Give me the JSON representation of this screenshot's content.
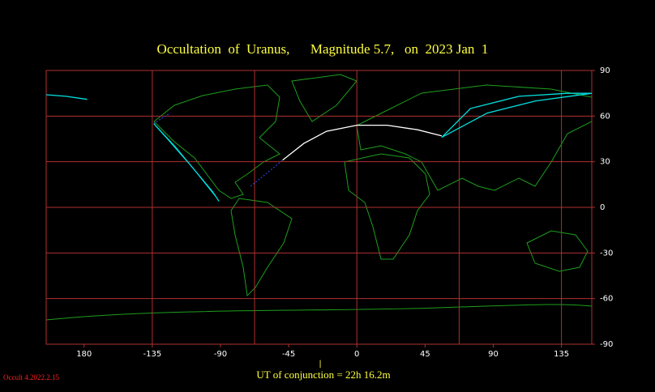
{
  "chart_data": {
    "type": "map",
    "title": "Occultation  of  Uranus,      Magnitude 5.7,   on  2023 Jan  1",
    "xlim": [
      -205,
      155
    ],
    "ylim": [
      -90,
      90
    ],
    "xticks": [
      {
        "value": -180,
        "label": "180"
      },
      -135,
      -90,
      -45,
      0,
      45,
      90,
      135
    ],
    "yticks": [
      90,
      60,
      30,
      0,
      -30,
      -60,
      -90
    ],
    "xgrid": [
      -135,
      -67.5,
      0,
      67.5,
      135
    ],
    "grid_color": "#b03030",
    "paths": [
      {
        "color": "#ffffff",
        "style": "solid",
        "x": [
          -49,
          -35,
          -20,
          0,
          20,
          40,
          56
        ],
        "y": [
          31,
          42,
          50,
          54,
          54,
          51,
          47
        ]
      },
      {
        "color": "#3050ff",
        "style": "dotted",
        "x": [
          -70,
          -60,
          -49
        ],
        "y": [
          14,
          22,
          31
        ]
      },
      {
        "color": "#3050ff",
        "style": "dotted",
        "x": [
          -134,
          -128,
          -123
        ],
        "y": [
          55,
          59,
          62
        ]
      },
      {
        "color": "#00e0e0",
        "style": "solid",
        "x": [
          -134,
          -120,
          -105,
          -93,
          -91,
          -95,
          -110,
          -125,
          -134
        ],
        "y": [
          55,
          40,
          22,
          7,
          4,
          10,
          28,
          45,
          55
        ]
      },
      {
        "color": "#00e0e0",
        "style": "solid",
        "x": [
          56,
          75,
          107,
          139,
          155
        ],
        "y": [
          46,
          65,
          73,
          75,
          75
        ]
      },
      {
        "color": "#00e0e0",
        "style": "solid",
        "x": [
          56,
          86,
          118,
          155
        ],
        "y": [
          46,
          62,
          70,
          75
        ]
      },
      {
        "color": "#00e0e0",
        "style": "solid",
        "x": [
          -205,
          -192,
          -178
        ],
        "y": [
          74,
          73,
          71
        ]
      }
    ],
    "conjunction_label": "UT of conjunction = 22h 16.2m",
    "software": "Occult 4.2022.2.15"
  }
}
